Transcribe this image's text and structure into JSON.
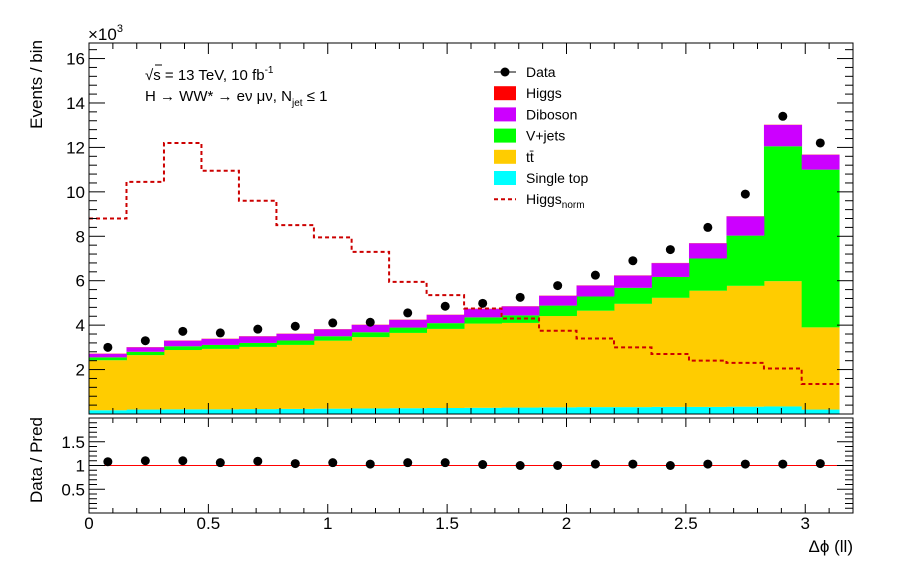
{
  "chart_data": {
    "type": "bar",
    "stacked": true,
    "x_bin_edges": [
      0,
      0.157,
      0.314,
      0.471,
      0.628,
      0.785,
      0.942,
      1.1,
      1.257,
      1.414,
      1.571,
      1.728,
      1.885,
      2.042,
      2.199,
      2.356,
      2.513,
      2.67,
      2.827,
      2.985,
      3.142
    ],
    "x_centers": [
      0.079,
      0.236,
      0.393,
      0.55,
      0.707,
      0.864,
      1.021,
      1.178,
      1.335,
      1.492,
      1.649,
      1.806,
      1.963,
      2.121,
      2.278,
      2.435,
      2.592,
      2.749,
      2.906,
      3.063
    ],
    "series": [
      {
        "name": "Single top",
        "color": "#00ffff",
        "values": [
          0.17,
          0.2,
          0.21,
          0.21,
          0.22,
          0.23,
          0.24,
          0.25,
          0.26,
          0.27,
          0.28,
          0.29,
          0.3,
          0.31,
          0.31,
          0.32,
          0.32,
          0.33,
          0.34,
          0.2
        ]
      },
      {
        "name": "tt̄",
        "color": "#ffcc00",
        "values": [
          2.25,
          2.45,
          2.67,
          2.72,
          2.8,
          2.88,
          3.06,
          3.21,
          3.39,
          3.56,
          3.79,
          3.81,
          4.11,
          4.34,
          4.65,
          4.91,
          5.23,
          5.44,
          5.64,
          3.7
        ]
      },
      {
        "name": "V+jets",
        "color": "#00ff00",
        "values": [
          0.13,
          0.15,
          0.17,
          0.18,
          0.18,
          0.2,
          0.2,
          0.22,
          0.24,
          0.26,
          0.28,
          0.34,
          0.47,
          0.64,
          0.72,
          0.94,
          1.45,
          2.26,
          6.07,
          7.1
        ]
      },
      {
        "name": "Diboson",
        "color": "#cc00ff",
        "values": [
          0.16,
          0.2,
          0.25,
          0.27,
          0.29,
          0.3,
          0.31,
          0.33,
          0.35,
          0.37,
          0.38,
          0.4,
          0.44,
          0.49,
          0.55,
          0.62,
          0.68,
          0.86,
          0.96,
          0.67
        ]
      },
      {
        "name": "Higgs",
        "color": "#ff0000",
        "values": [
          0.01,
          0.01,
          0.01,
          0.01,
          0.01,
          0.01,
          0.01,
          0.01,
          0.01,
          0.01,
          0.01,
          0.01,
          0.01,
          0.01,
          0.01,
          0.01,
          0.01,
          0.01,
          0.01,
          0.01
        ]
      }
    ],
    "higgs_norm": {
      "name": "Higgs",
      "subscript": "norm",
      "color": "#cc0000",
      "values": [
        8.8,
        10.45,
        12.2,
        10.95,
        9.6,
        8.5,
        7.95,
        7.3,
        5.95,
        5.35,
        4.75,
        4.3,
        3.75,
        3.4,
        3.0,
        2.7,
        2.4,
        2.3,
        2.05,
        1.35
      ]
    },
    "data_values": [
      3.0,
      3.3,
      3.72,
      3.65,
      3.82,
      3.95,
      4.1,
      4.13,
      4.55,
      4.85,
      4.98,
      5.25,
      5.78,
      6.25,
      6.9,
      7.4,
      8.4,
      9.9,
      13.4,
      12.2
    ],
    "ratio_values": [
      1.08,
      1.1,
      1.1,
      1.06,
      1.09,
      1.04,
      1.06,
      1.03,
      1.06,
      1.06,
      1.02,
      1.0,
      1.0,
      1.03,
      1.03,
      1.0,
      1.03,
      1.03,
      1.03,
      1.04
    ],
    "xlabel": "Δϕ (ll)",
    "ylabel": "Events / bin",
    "ratio_ylabel": "Data / Pred",
    "y_multiplier": "×10",
    "y_multiplier_exp": "3",
    "xlim": [
      0,
      3.2
    ],
    "ylim": [
      0,
      16.7
    ],
    "ratio_ylim": [
      0,
      2.0
    ],
    "x_ticks": [
      0,
      0.5,
      1,
      1.5,
      2,
      2.5,
      3
    ],
    "x_tick_labels": [
      "0",
      "0.5",
      "1",
      "1.5",
      "2",
      "2.5",
      "3"
    ],
    "y_ticks": [
      2,
      4,
      6,
      8,
      10,
      12,
      14,
      16
    ],
    "y_tick_labels": [
      "2",
      "4",
      "6",
      "8",
      "10",
      "12",
      "14",
      "16"
    ],
    "ratio_y_ticks": [
      0.5,
      1,
      1.5
    ],
    "ratio_y_tick_labels": [
      "0.5",
      "1",
      "1.5"
    ],
    "annotation_line1": {
      "sqrt": "s",
      "text": " = 13 TeV, 10 fb",
      "sup": "-1"
    },
    "annotation_line2": {
      "text": "H → WW* → eν μν, N",
      "sub": "jet",
      "tail": " ≤ 1"
    },
    "legend": [
      {
        "label": "Data",
        "style": "marker"
      },
      {
        "label": "Higgs",
        "style": "box",
        "color": "#ff0000"
      },
      {
        "label": "Diboson",
        "style": "box",
        "color": "#cc00ff"
      },
      {
        "label": "V+jets",
        "style": "box",
        "color": "#00ff00"
      },
      {
        "label": "tt̄",
        "style": "box",
        "color": "#ffcc00"
      },
      {
        "label": "Single top",
        "style": "box",
        "color": "#00ffff"
      },
      {
        "label": "Higgs",
        "sub": "norm",
        "style": "dashed",
        "color": "#cc0000"
      }
    ],
    "legend_placement": "top-right"
  }
}
